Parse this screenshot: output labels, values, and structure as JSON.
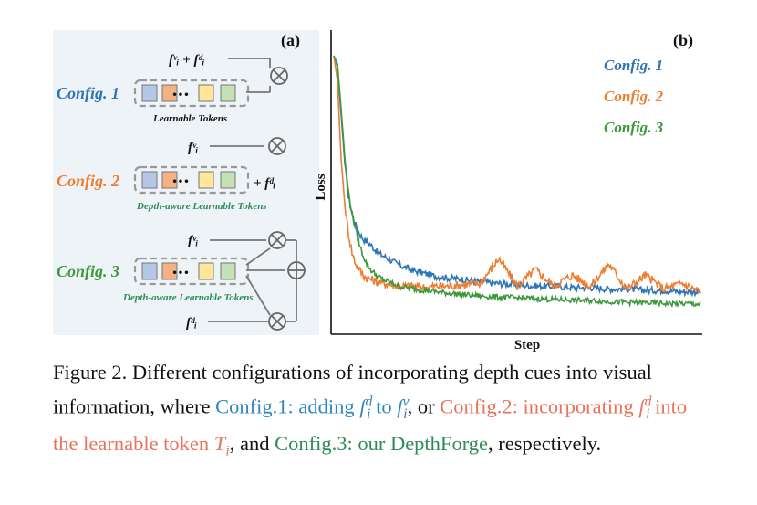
{
  "panel_a": {
    "label": "(a)",
    "configs": [
      {
        "name": "Config. 1",
        "color": "#2e75b6",
        "top_input": "fᵛᵢ + fᵈᵢ",
        "tokens_label": "Learnable Tokens",
        "tokens_label_color": "#111111"
      },
      {
        "name": "Config. 2",
        "color": "#ed7d31",
        "top_input": "fᵛᵢ",
        "side_input": "+ fᵈᵢ",
        "tokens_label": "Depth-aware Learnable Tokens",
        "tokens_label_color": "#2e8b57"
      },
      {
        "name": "Config. 3",
        "color": "#3c9a3c",
        "top_input": "fᵛᵢ",
        "bottom_input": "fᵈᵢ",
        "tokens_label": "Depth-aware Learnable Tokens",
        "tokens_label_color": "#2e8b57"
      }
    ],
    "token_colors": [
      "#b4c7e7",
      "#f4b183",
      "#ffe699",
      "#c5e0b4"
    ],
    "ellipsis": "•••"
  },
  "chart_data": {
    "type": "line",
    "label": "(b)",
    "xlabel": "Step",
    "ylabel": "Loss",
    "grid": false,
    "legend_position": "top-right",
    "x": [
      0,
      1,
      2,
      3,
      4,
      5,
      6,
      7,
      8,
      9,
      10,
      12,
      14,
      16,
      18,
      20,
      22,
      25,
      28,
      31,
      35,
      40,
      45,
      50,
      55,
      60,
      65,
      70,
      75,
      80,
      85,
      90,
      95,
      100
    ],
    "series": [
      {
        "name": "Config. 1",
        "color": "#2e75b6",
        "values": [
          0.99,
          0.95,
          0.78,
          0.6,
          0.48,
          0.42,
          0.38,
          0.35,
          0.33,
          0.32,
          0.31,
          0.28,
          0.265,
          0.25,
          0.235,
          0.225,
          0.215,
          0.205,
          0.195,
          0.19,
          0.185,
          0.175,
          0.17,
          0.165,
          0.16,
          0.16,
          0.155,
          0.155,
          0.15,
          0.15,
          0.145,
          0.145,
          0.14,
          0.14
        ]
      },
      {
        "name": "Config. 2",
        "color": "#ed7d31",
        "values": [
          0.99,
          0.9,
          0.62,
          0.45,
          0.35,
          0.28,
          0.24,
          0.22,
          0.2,
          0.19,
          0.185,
          0.175,
          0.17,
          0.165,
          0.16,
          0.16,
          0.16,
          0.155,
          0.16,
          0.16,
          0.165,
          0.17,
          0.26,
          0.16,
          0.22,
          0.16,
          0.2,
          0.16,
          0.24,
          0.15,
          0.2,
          0.15,
          0.17,
          0.14
        ]
      },
      {
        "name": "Config. 3",
        "color": "#3c9a3c",
        "values": [
          0.99,
          0.96,
          0.8,
          0.62,
          0.5,
          0.42,
          0.36,
          0.31,
          0.27,
          0.24,
          0.22,
          0.195,
          0.18,
          0.17,
          0.16,
          0.155,
          0.15,
          0.145,
          0.14,
          0.135,
          0.13,
          0.125,
          0.12,
          0.118,
          0.115,
          0.112,
          0.11,
          0.108,
          0.105,
          0.102,
          0.1,
          0.098,
          0.097,
          0.095
        ]
      }
    ]
  },
  "caption": {
    "prefix": "Figure 2. Different configurations of incorporating depth cues into visual information, where ",
    "c1_text": "Config.1: adding ",
    "c1_math_a": "f",
    "c1_math_a_sup": "d",
    "c1_math_a_sub": "i",
    "c1_to": " to ",
    "c1_math_b": "f",
    "c1_math_b_sup": "v",
    "c1_math_b_sub": "i",
    "sep1": ", or ",
    "c2_text": "Config.2: incorporating ",
    "c2_math": "f",
    "c2_math_sup": "d",
    "c2_math_sub": "i",
    "c2_mid": " into the learnable token ",
    "c2_token": "T",
    "c2_token_sub": "i",
    "sep2": ", and ",
    "c3_text": "Config.3: our DepthForge",
    "suffix": ", respectively."
  }
}
